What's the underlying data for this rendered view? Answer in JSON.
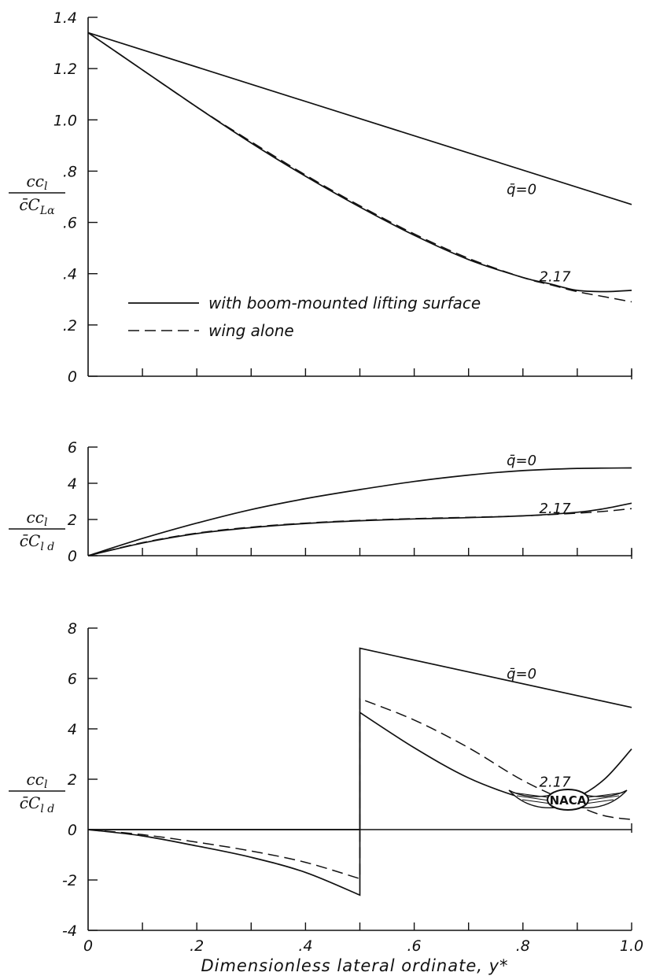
{
  "chart_data": [
    {
      "type": "line",
      "panel": "top",
      "ylabel": {
        "num": "cc",
        "num_sub": "l",
        "den": "c̄C",
        "den_sub": "Lα"
      },
      "xlim": [
        0,
        1.0
      ],
      "ylim": [
        0,
        1.4
      ],
      "yticks": [
        0,
        0.2,
        0.4,
        0.6,
        0.8,
        1.0,
        1.2,
        1.4
      ],
      "ytick_labels": [
        "0",
        ".2",
        ".4",
        ".6",
        ".8",
        "1.0",
        "1.2",
        "1.4"
      ],
      "series": [
        {
          "name": "q=0",
          "style": "solid",
          "x": [
            0,
            0.5,
            1.0
          ],
          "y": [
            1.34,
            1.005,
            0.67
          ]
        },
        {
          "name": "2.17",
          "style": "solid",
          "x": [
            0,
            0.1,
            0.2,
            0.3,
            0.4,
            0.5,
            0.6,
            0.7,
            0.8,
            0.85,
            0.9,
            0.95,
            1.0
          ],
          "y": [
            1.34,
            1.195,
            1.05,
            0.91,
            0.78,
            0.66,
            0.55,
            0.455,
            0.385,
            0.36,
            0.335,
            0.33,
            0.335
          ]
        },
        {
          "name": "wing alone",
          "style": "dashed",
          "x": [
            0,
            0.1,
            0.2,
            0.3,
            0.4,
            0.5,
            0.6,
            0.7,
            0.8,
            0.85,
            0.9,
            0.95,
            1.0
          ],
          "y": [
            1.34,
            1.195,
            1.05,
            0.915,
            0.785,
            0.665,
            0.555,
            0.46,
            0.385,
            0.357,
            0.33,
            0.31,
            0.29
          ]
        }
      ],
      "legend": [
        {
          "style": "solid",
          "label": "with boom-mounted lifting surface"
        },
        {
          "style": "dashed",
          "label": "wing alone"
        }
      ],
      "annotations": [
        {
          "text": "q̄=0",
          "x": 0.77,
          "y": 0.71
        },
        {
          "text": "2.17",
          "x": 0.83,
          "y": 0.37
        }
      ]
    },
    {
      "type": "line",
      "panel": "middle",
      "ylabel": {
        "num": "cc",
        "num_sub": "l",
        "den": "c̄C",
        "den_sub": "l d"
      },
      "xlim": [
        0,
        1.0
      ],
      "ylim": [
        0,
        6
      ],
      "yticks": [
        0,
        2,
        4,
        6
      ],
      "ytick_labels": [
        "0",
        "2",
        "4",
        "6"
      ],
      "series": [
        {
          "name": "q=0",
          "style": "solid",
          "x": [
            0,
            0.1,
            0.2,
            0.3,
            0.4,
            0.5,
            0.6,
            0.7,
            0.8,
            0.9,
            1.0
          ],
          "y": [
            0,
            0.95,
            1.8,
            2.55,
            3.15,
            3.65,
            4.1,
            4.45,
            4.7,
            4.82,
            4.85
          ]
        },
        {
          "name": "2.17",
          "style": "solid",
          "x": [
            0,
            0.1,
            0.2,
            0.3,
            0.4,
            0.5,
            0.6,
            0.7,
            0.8,
            0.9,
            0.95,
            1.0
          ],
          "y": [
            0,
            0.7,
            1.22,
            1.55,
            1.78,
            1.93,
            2.03,
            2.1,
            2.2,
            2.4,
            2.6,
            2.9
          ]
        },
        {
          "name": "wing alone",
          "style": "dashed",
          "x": [
            0,
            0.1,
            0.2,
            0.3,
            0.4,
            0.5,
            0.6,
            0.7,
            0.8,
            0.9,
            0.95,
            1.0
          ],
          "y": [
            0,
            0.72,
            1.25,
            1.58,
            1.8,
            1.95,
            2.05,
            2.12,
            2.2,
            2.35,
            2.45,
            2.6
          ]
        }
      ],
      "annotations": [
        {
          "text": "q̄=0",
          "x": 0.77,
          "y": 5.0
        },
        {
          "text": "2.17",
          "x": 0.83,
          "y": 2.35
        }
      ]
    },
    {
      "type": "line",
      "panel": "bottom",
      "ylabel": {
        "num": "cc",
        "num_sub": "l",
        "den": "c̄C",
        "den_sub": "l d"
      },
      "xlabel": "Dimensionless lateral ordinate, y*",
      "xlim": [
        0,
        1.0
      ],
      "ylim": [
        -4,
        8
      ],
      "xticks": [
        0,
        0.1,
        0.2,
        0.3,
        0.4,
        0.5,
        0.6,
        0.7,
        0.8,
        0.9,
        1.0
      ],
      "xtick_labels": [
        "0",
        "",
        ".2",
        "",
        ".4",
        "",
        ".6",
        "",
        ".8",
        "",
        "1.0"
      ],
      "yticks": [
        -4,
        -2,
        0,
        2,
        4,
        6,
        8
      ],
      "ytick_labels": [
        "-4",
        "-2",
        "0",
        "2",
        "4",
        "6",
        "8"
      ],
      "series": [
        {
          "name": "q=0",
          "style": "solid",
          "x": [
            0,
            0.5,
            0.5,
            1.0
          ],
          "y": [
            0,
            0,
            7.2,
            4.85
          ]
        },
        {
          "name": "2.17",
          "style": "solid",
          "x": [
            0,
            0.1,
            0.2,
            0.3,
            0.4,
            0.5,
            0.5,
            0.6,
            0.7,
            0.8,
            0.85,
            0.9,
            0.95,
            1.0
          ],
          "y": [
            0,
            -0.25,
            -0.65,
            -1.1,
            -1.7,
            -2.6,
            4.65,
            3.25,
            2.05,
            1.25,
            1.1,
            1.3,
            2.0,
            3.2
          ]
        },
        {
          "name": "wing alone",
          "style": "dashed",
          "x": [
            0,
            0.1,
            0.2,
            0.3,
            0.4,
            0.5,
            0.5,
            0.6,
            0.7,
            0.8,
            0.9,
            0.95,
            1.0
          ],
          "y": [
            0,
            -0.2,
            -0.5,
            -0.85,
            -1.3,
            -1.95,
            5.2,
            4.35,
            3.25,
            1.95,
            0.95,
            0.55,
            0.4
          ]
        }
      ],
      "annotations": [
        {
          "text": "q̄=0",
          "x": 0.77,
          "y": 6.0
        },
        {
          "text": "2.17",
          "x": 0.83,
          "y": 1.7
        }
      ],
      "logo": "NACA"
    }
  ]
}
